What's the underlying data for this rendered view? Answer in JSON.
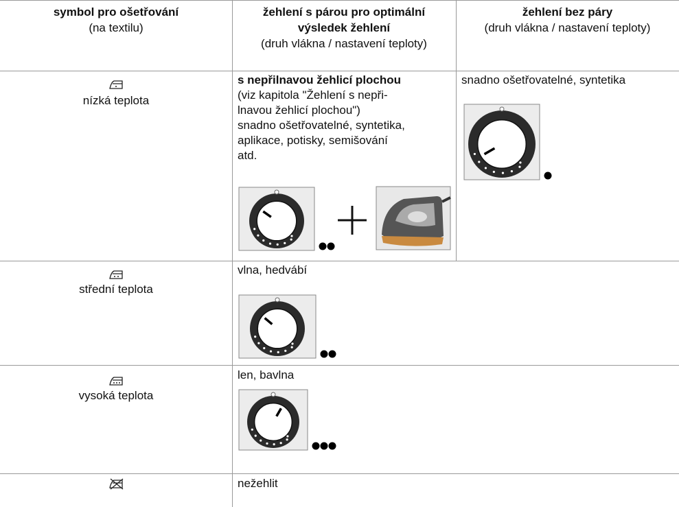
{
  "table": {
    "header": [
      {
        "title": "symbol pro ošetřování",
        "note": "(na textilu)"
      },
      {
        "title": "žehlení s párou pro optimální výsledek žehlení",
        "note": "(druh vlákna / nastavení teploty)"
      },
      {
        "title": "žehlení bez páry",
        "note": "(druh vlákna / nastavení teploty)"
      }
    ],
    "rows": [
      {
        "symbol_label": "nízká teplota",
        "steam": {
          "heading": "s nepřilnavou žehlicí plochou",
          "lines": [
            "(viz kapitola \"Žehlení s nepři-",
            "lnavou žehlicí plochou\")",
            "snadno ošetřovatelné, syntetika,",
            "aplikace, potisky, semišování",
            "atd."
          ]
        },
        "dry": "snadno ošetřovatelné, syntetika"
      },
      {
        "symbol_label": "střední teplota",
        "text": "vlna, hedvábí"
      },
      {
        "symbol_label": "vysoká teplota",
        "text": "len, bavlna"
      },
      {
        "text": "nežehlit"
      }
    ]
  }
}
